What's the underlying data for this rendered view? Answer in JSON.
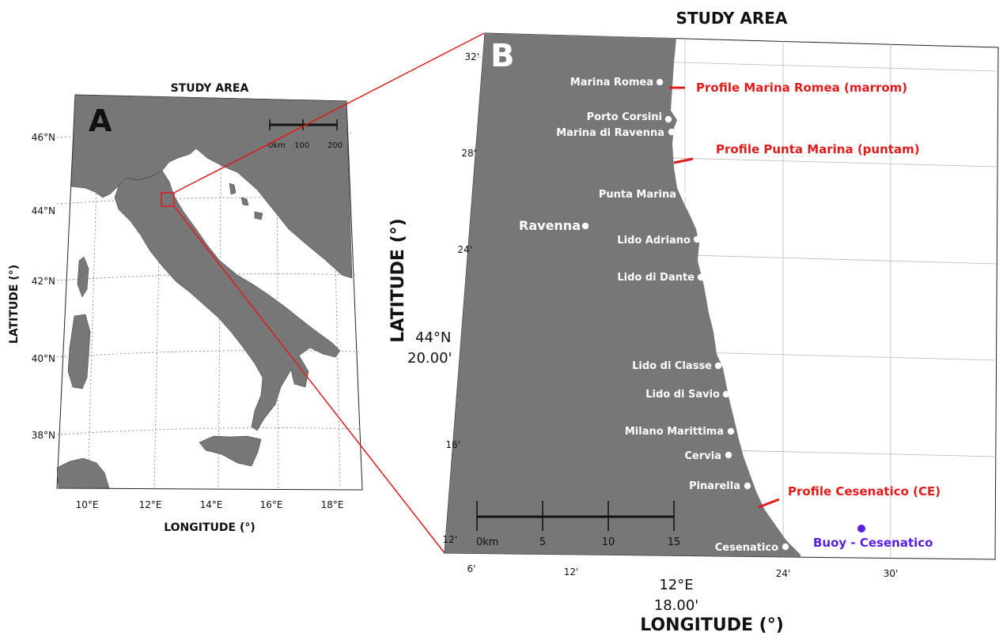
{
  "panel_a": {
    "title": "STUDY AREA",
    "letter": "A",
    "xlabel": "LONGITUDE (°)",
    "ylabel": "LATITUDE (°)",
    "lat_ticks": [
      "46°N",
      "44°N",
      "42°N",
      "40°N",
      "38°N"
    ],
    "lon_ticks": [
      "10°E",
      "12°E",
      "14°E",
      "16°E",
      "18°E"
    ],
    "scalebar": [
      "0km",
      "100",
      "200"
    ]
  },
  "panel_b": {
    "title": "STUDY AREA",
    "letter": "B",
    "xlabel": "LONGITUDE (°)",
    "ylabel": "LATITUDE (°)",
    "lat_ticks": [
      "32'",
      "28'",
      "24'",
      "16'",
      "12'"
    ],
    "lat_major": [
      "44°N",
      "20.00'"
    ],
    "lon_ticks": [
      "6'",
      "12'",
      "24'",
      "30'"
    ],
    "lon_major": [
      "12°E",
      "18.00'"
    ],
    "scalebar": [
      "0km",
      "5",
      "10",
      "15"
    ],
    "city": "Ravenna",
    "places": [
      "Marina Romea",
      "Porto Corsini",
      "Marina di Ravenna",
      "Punta Marina",
      "Lido Adriano",
      "Lido di Dante",
      "Lido di Classe",
      "Lido di Savio",
      "Milano Marittima",
      "Cervia",
      "Pinarella",
      "Cesenatico"
    ],
    "profiles": [
      "Profile Marina Romea (marrom)",
      "Profile Punta Marina (puntam)",
      "Profile Cesenatico (CE)"
    ],
    "buoy": "Buoy - Cesenatico"
  },
  "colors": {
    "land": "#777777",
    "profile": "#e01b1b",
    "buoy": "#5a1fe0",
    "zoom_lines": "#e01b1b"
  }
}
